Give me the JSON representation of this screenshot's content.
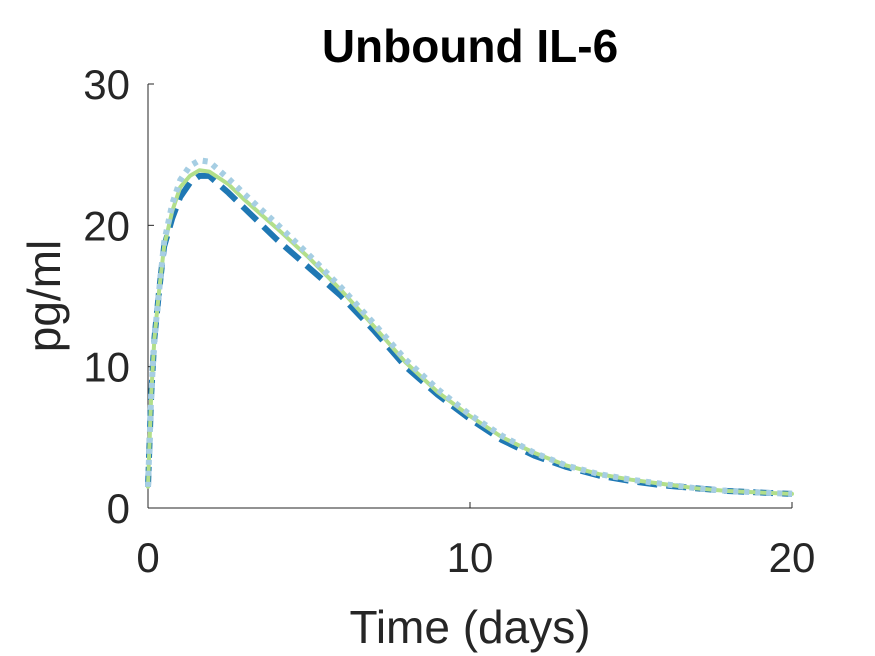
{
  "chart_data": {
    "type": "line",
    "title": "Unbound IL-6",
    "xlabel": "Time (days)",
    "ylabel": "pg/ml",
    "xlim": [
      0,
      20
    ],
    "ylim": [
      0,
      30
    ],
    "xticks": [
      0,
      10,
      20
    ],
    "yticks": [
      0,
      10,
      20,
      30
    ],
    "xtick_labels": [
      "0",
      "10",
      "20"
    ],
    "ytick_labels": [
      "0",
      "10",
      "20",
      "30"
    ],
    "grid": false,
    "series": [
      {
        "color": "#1f78b4",
        "style": "dashed",
        "x": [
          0,
          0.1,
          0.2,
          0.35,
          0.5,
          0.75,
          1.0,
          1.3,
          1.6,
          1.9,
          2.5,
          3,
          4,
          5,
          6,
          7,
          8,
          9,
          10,
          11,
          12,
          13,
          14,
          15,
          16,
          17,
          18,
          19,
          20
        ],
        "y": [
          1.5,
          8,
          12,
          15.5,
          18.5,
          20.5,
          22,
          23,
          23.5,
          23.5,
          22.3,
          21.2,
          19,
          17,
          15,
          12.6,
          10,
          8,
          6.3,
          4.8,
          3.7,
          2.9,
          2.3,
          1.9,
          1.6,
          1.4,
          1.2,
          1.1,
          1.0
        ]
      },
      {
        "color": "#b2df8a",
        "style": "solid",
        "x": [
          0,
          0.1,
          0.2,
          0.35,
          0.5,
          0.75,
          1.0,
          1.3,
          1.6,
          1.9,
          2.5,
          3,
          4,
          5,
          6,
          7,
          8,
          9,
          10,
          11,
          12,
          13,
          14,
          15,
          16,
          17,
          18,
          19,
          20
        ],
        "y": [
          1.5,
          8,
          12,
          15.5,
          18.5,
          21,
          22.7,
          23.5,
          23.9,
          23.8,
          22.9,
          21.8,
          19.8,
          17.7,
          15.4,
          12.9,
          10.3,
          8.2,
          6.5,
          5.0,
          3.9,
          3.0,
          2.4,
          2.0,
          1.7,
          1.4,
          1.2,
          1.1,
          1.0
        ]
      },
      {
        "color": "#a6cee3",
        "style": "dotted",
        "x": [
          0,
          0.1,
          0.2,
          0.35,
          0.5,
          0.75,
          1.0,
          1.3,
          1.6,
          1.9,
          2.5,
          3,
          4,
          5,
          6,
          7,
          8,
          9,
          10,
          11,
          12,
          13,
          14,
          15,
          16,
          17,
          18,
          19,
          20
        ],
        "y": [
          1.5,
          8,
          12,
          15.5,
          18.8,
          21.5,
          23.2,
          24.2,
          24.6,
          24.5,
          23.3,
          22.2,
          20.1,
          17.9,
          15.6,
          13.1,
          10.5,
          8.4,
          6.6,
          5.1,
          3.9,
          3.0,
          2.4,
          2.0,
          1.7,
          1.4,
          1.2,
          1.1,
          1.0
        ]
      }
    ]
  }
}
